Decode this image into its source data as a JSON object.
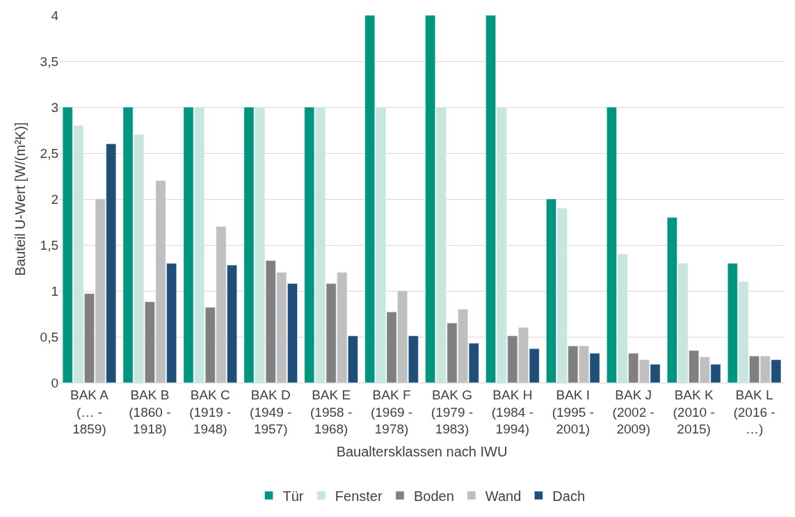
{
  "chart_data": {
    "type": "bar",
    "xlabel": "Baualtersklassen nach IWU",
    "ylabel": "Bauteil U-Wert [W/(m²K)]",
    "categories": [
      "BAK A\n(… -\n1859)",
      "BAK B\n(1860 -\n1918)",
      "BAK C\n(1919 -\n1948)",
      "BAK D\n(1949 -\n1957)",
      "BAK E\n(1958 -\n1968)",
      "BAK F\n(1969 -\n1978)",
      "BAK G\n(1979 -\n1983)",
      "BAK H\n(1984 -\n1994)",
      "BAK I\n(1995 -\n2001)",
      "BAK J\n(2002 -\n2009)",
      "BAK K\n(2010 -\n2015)",
      "BAK L\n(2016 -\n…)"
    ],
    "series": [
      {
        "name": "Tür",
        "color": "#00957f",
        "values": [
          3,
          3,
          3,
          3,
          3,
          4,
          4,
          4,
          2,
          3,
          1.8,
          1.3
        ]
      },
      {
        "name": "Fenster",
        "color": "#c6e6de",
        "values": [
          2.8,
          2.7,
          3,
          3,
          3,
          3,
          3,
          3,
          1.9,
          1.4,
          1.3,
          1.1
        ]
      },
      {
        "name": "Boden",
        "color": "#808080",
        "values": [
          0.97,
          0.88,
          0.82,
          1.33,
          1.08,
          0.77,
          0.65,
          0.51,
          0.4,
          0.32,
          0.35,
          0.29
        ]
      },
      {
        "name": "Wand",
        "color": "#bfbfbf",
        "values": [
          2,
          2.2,
          1.7,
          1.2,
          1.2,
          1,
          0.8,
          0.6,
          0.4,
          0.25,
          0.28,
          0.29
        ]
      },
      {
        "name": "Dach",
        "color": "#1f4e79",
        "values": [
          2.6,
          1.3,
          1.28,
          1.08,
          0.51,
          0.51,
          0.43,
          0.37,
          0.32,
          0.2,
          0.2,
          0.25
        ]
      }
    ],
    "ylim": [
      0,
      4
    ],
    "yticks": [
      0,
      {
        "value": 0.5,
        "label": "0,5"
      },
      1,
      {
        "value": 1.5,
        "label": "1,5"
      },
      2,
      {
        "value": 2.5,
        "label": "2,5"
      },
      3,
      {
        "value": 3.5,
        "label": "3,5"
      },
      4
    ],
    "grid": "y",
    "legend": "bottom"
  }
}
